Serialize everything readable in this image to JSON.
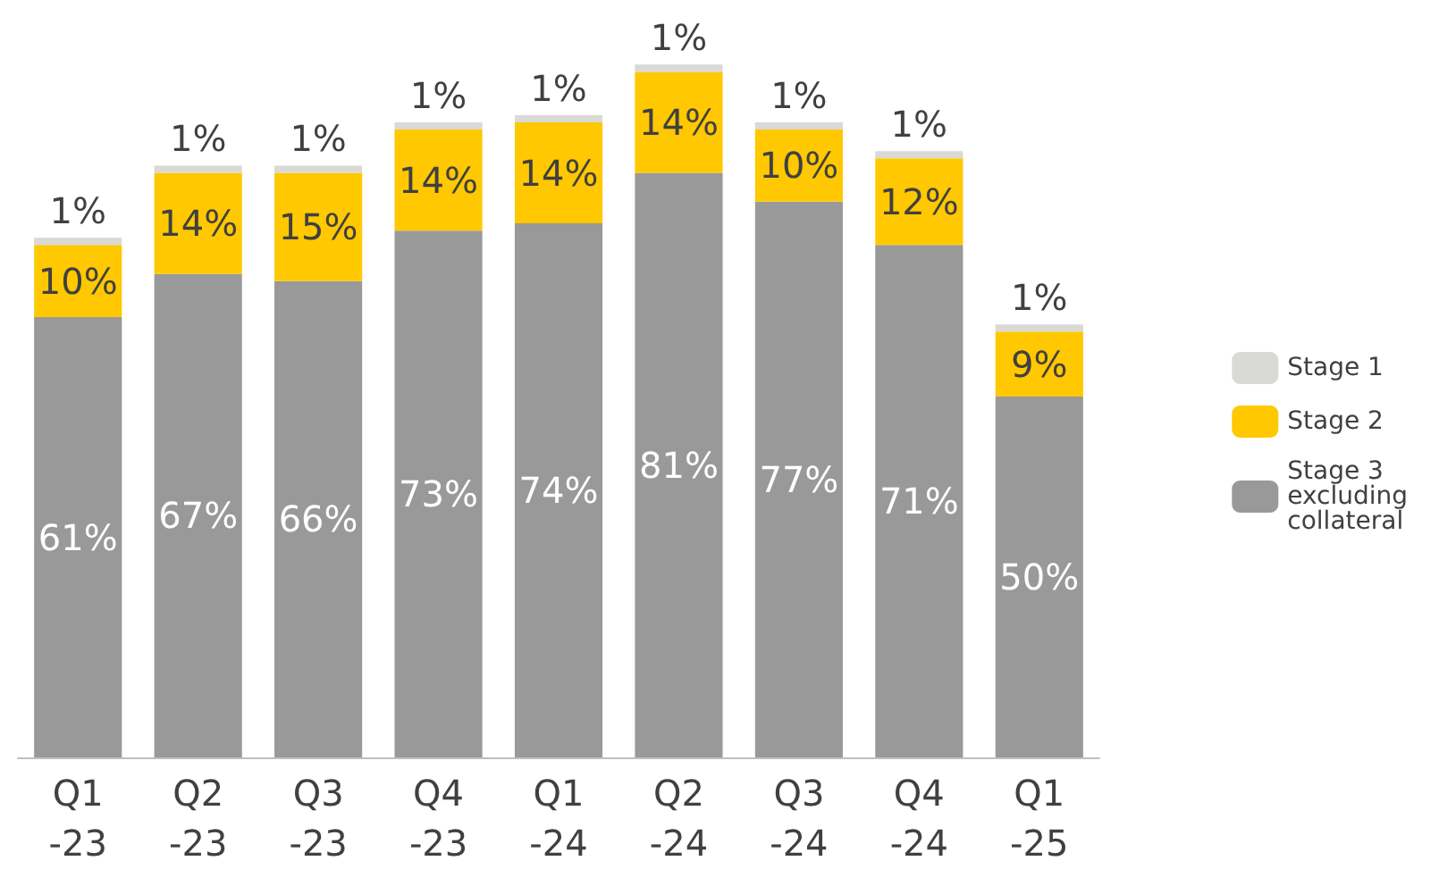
{
  "chart_data": {
    "type": "bar",
    "stacked": true,
    "categories": [
      "Q1\n-23",
      "Q2\n-23",
      "Q3\n-23",
      "Q4\n-23",
      "Q1\n-24",
      "Q2\n-24",
      "Q3\n-24",
      "Q4\n-24",
      "Q1\n-25"
    ],
    "series": [
      {
        "name": "Stage 3 excluding collateral",
        "color": "#999999",
        "values": [
          61,
          67,
          66,
          73,
          74,
          81,
          77,
          71,
          50
        ],
        "value_labels": [
          "61%",
          "67%",
          "66%",
          "73%",
          "74%",
          "81%",
          "77%",
          "71%",
          "50%"
        ]
      },
      {
        "name": "Stage 2",
        "color": "#ffc800",
        "values": [
          10,
          14,
          15,
          14,
          14,
          14,
          10,
          12,
          9
        ],
        "value_labels": [
          "10%",
          "14%",
          "15%",
          "14%",
          "14%",
          "14%",
          "10%",
          "12%",
          "9%"
        ]
      },
      {
        "name": "Stage 1",
        "color": "#d9d9d6",
        "values": [
          1,
          1,
          1,
          1,
          1,
          1,
          1,
          1,
          1
        ],
        "value_labels": [
          "1%",
          "1%",
          "1%",
          "1%",
          "1%",
          "1%",
          "1%",
          "1%",
          "1%"
        ]
      }
    ],
    "legend": "right",
    "grid": false
  }
}
